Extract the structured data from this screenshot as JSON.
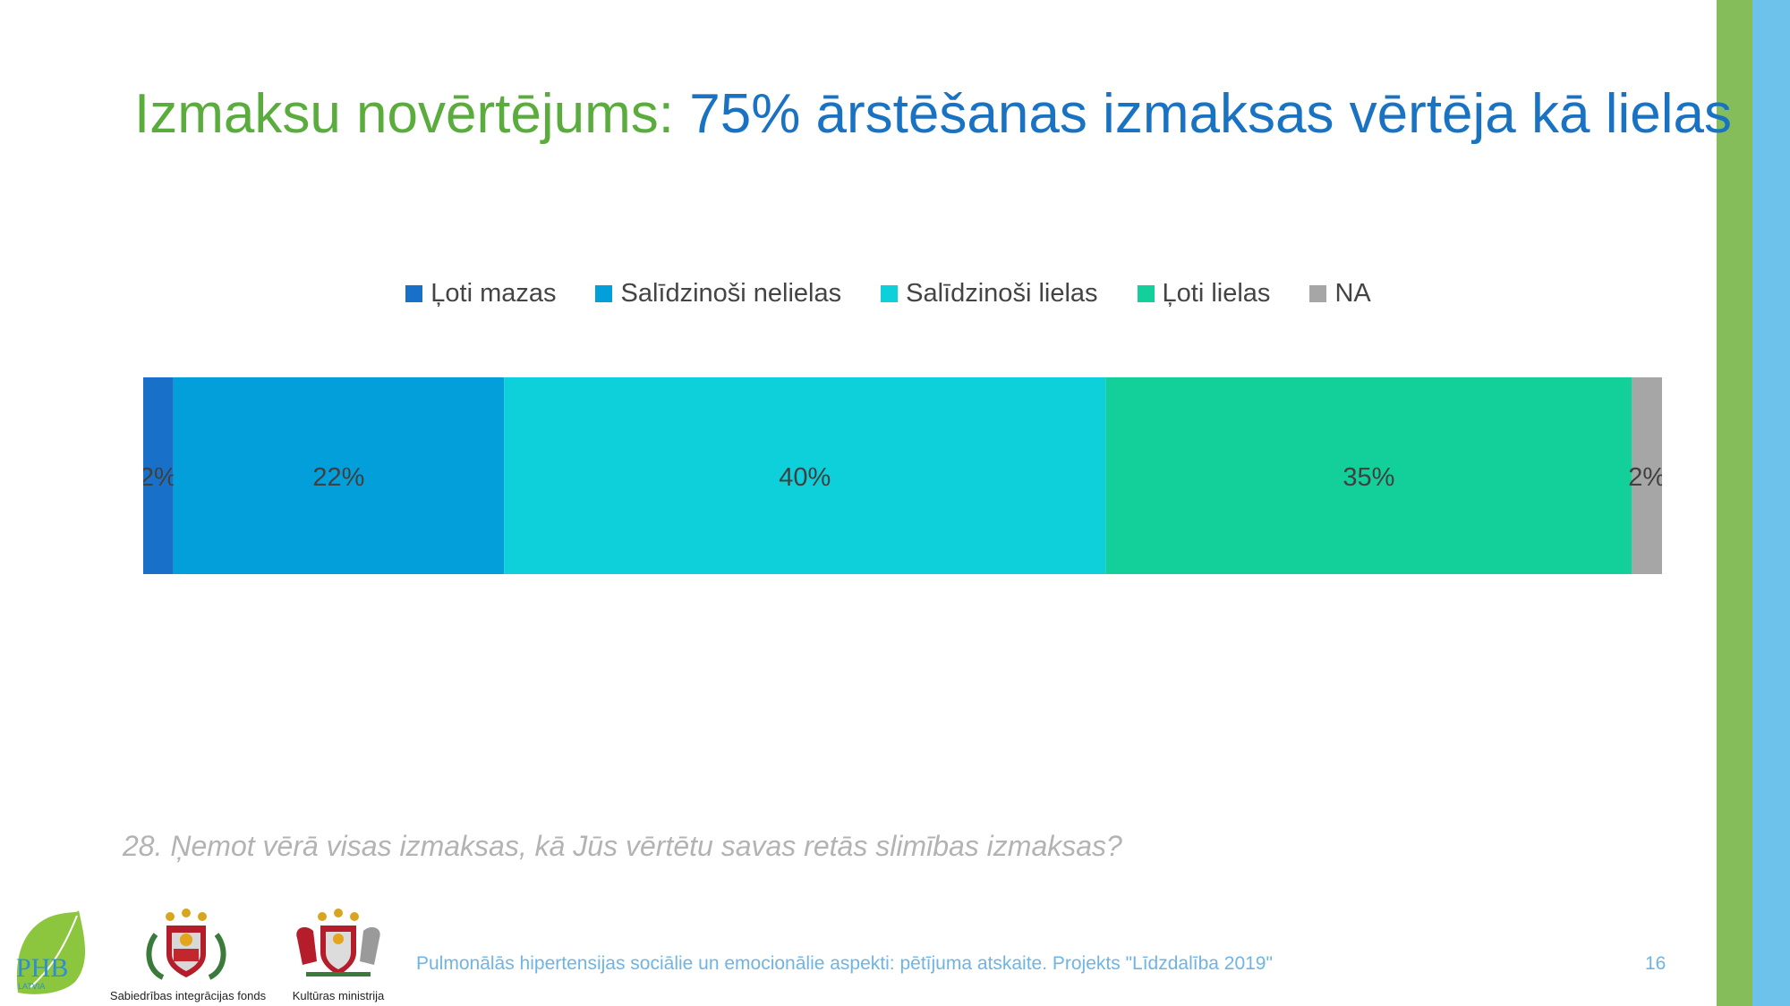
{
  "slide": {
    "title_part1": "Izmaksu novērtējums:",
    "title_part2": "75% ārstēšanas izmaksas vērtēja kā lielas",
    "question": "28. Ņemot vērā visas izmaksas, kā Jūs vērtētu savas retās slimības izmaksas?",
    "footer": "Pulmonālās hipertensijas sociālie un emocionālie aspekti: pētījuma atskaite. Projekts \"Līdzdalība 2019\"",
    "page_number": "16"
  },
  "logos": {
    "phb": "PHB",
    "phb_sub": "LATVIA",
    "sif_caption": "Sabiedrības integrācijas fonds",
    "km_caption": "Kultūras ministrija"
  },
  "colors": {
    "title_green": "#5aac3c",
    "title_blue": "#1a73c2",
    "stripe_green": "#86bd5b",
    "stripe_blue": "#6cc2ea"
  },
  "chart_data": {
    "type": "bar",
    "orientation": "horizontal",
    "stacked": "100%",
    "legend_position": "top",
    "grid": false,
    "categories": [
      ""
    ],
    "series": [
      {
        "name": "Ļoti mazas",
        "values": [
          2
        ],
        "label": "2%",
        "color": "#1870c9"
      },
      {
        "name": "Salīdzinoši nelielas",
        "values": [
          22
        ],
        "label": "22%",
        "color": "#039fdb"
      },
      {
        "name": "Salīdzinoši lielas",
        "values": [
          40
        ],
        "label": "40%",
        "color": "#0ed0da"
      },
      {
        "name": "Ļoti lielas",
        "values": [
          35
        ],
        "label": "35%",
        "color": "#13d09b"
      },
      {
        "name": "NA",
        "values": [
          2
        ],
        "label": "2%",
        "color": "#a6a6a6"
      }
    ]
  }
}
